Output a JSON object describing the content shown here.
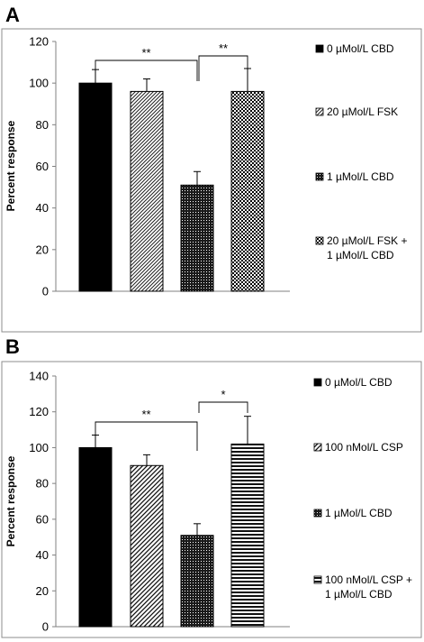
{
  "chart_data": [
    {
      "panel": "A",
      "type": "bar",
      "ylabel": "Percent response",
      "ylim": [
        0,
        120
      ],
      "yticks": [
        "0",
        "20",
        "40",
        "60",
        "80",
        "100",
        "120"
      ],
      "bars": [
        {
          "legend": [
            "0 µMol/L CBD"
          ],
          "value": 100,
          "err": 6.5,
          "pattern": "solid"
        },
        {
          "legend": [
            "20 µMol/L FSK"
          ],
          "value": 96,
          "err": 6,
          "pattern": "diag"
        },
        {
          "legend": [
            "1 µMol/L CBD"
          ],
          "value": 51,
          "err": 6.5,
          "pattern": "dots"
        },
        {
          "legend": [
            "20 µMol/L FSK +",
            "1 µMol/L CBD"
          ],
          "value": 96,
          "err": 11,
          "pattern": "checker"
        }
      ],
      "significance": [
        {
          "label": "**",
          "from": 0,
          "to": 2
        },
        {
          "label": "**",
          "from": 2,
          "to": 3
        }
      ],
      "grid": false,
      "legend_position": "right"
    },
    {
      "panel": "B",
      "type": "bar",
      "ylabel": "Percent response",
      "ylim": [
        0,
        140
      ],
      "yticks": [
        "0",
        "20",
        "40",
        "60",
        "80",
        "100",
        "120",
        "140"
      ],
      "bars": [
        {
          "legend": [
            "0 µMol/L CBD"
          ],
          "value": 100,
          "err": 7,
          "pattern": "solid"
        },
        {
          "legend": [
            "100 nMol/L CSP"
          ],
          "value": 90,
          "err": 6,
          "pattern": "diagwide"
        },
        {
          "legend": [
            "1 µMol/L CBD"
          ],
          "value": 51,
          "err": 6.5,
          "pattern": "dots"
        },
        {
          "legend": [
            "100 nMol/L CSP +",
            "1 µMol/L CBD"
          ],
          "value": 102,
          "err": 15.5,
          "pattern": "hlines"
        }
      ],
      "significance": [
        {
          "label": "**",
          "from": 0,
          "to": 2
        },
        {
          "label": "*",
          "from": 2,
          "to": 3
        }
      ],
      "grid": false,
      "legend_position": "right"
    }
  ],
  "colors": {
    "bar_dark": "#000000",
    "axis": "#808080",
    "frame": "#8c8c8c",
    "text": "#000000"
  }
}
